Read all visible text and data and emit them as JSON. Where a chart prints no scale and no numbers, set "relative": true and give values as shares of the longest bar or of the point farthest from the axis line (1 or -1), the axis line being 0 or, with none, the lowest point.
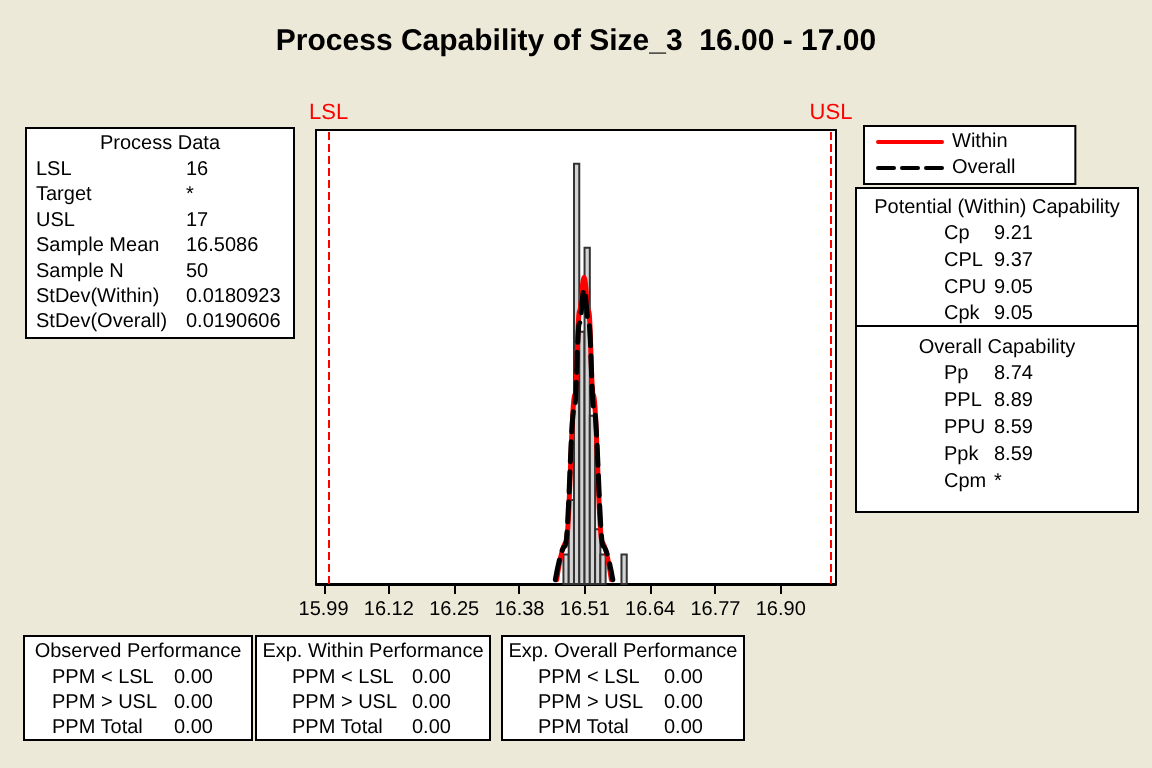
{
  "chart_data": {
    "type": "histogram",
    "title": "Process Capability of Size_3  16.00 - 17.00",
    "relative": true,
    "bins": [
      16.4675,
      16.478,
      16.4885,
      16.499,
      16.5095,
      16.52,
      16.5305,
      16.541,
      16.5515,
      16.562,
      16.5725,
      16.583,
      16.5935
    ],
    "values": [
      0.07,
      0.2,
      1,
      0.6,
      0.8,
      0.4,
      0.13,
      0.07,
      0,
      0,
      0,
      0.07
    ],
    "color": "#d4d4d4",
    "series": [
      {
        "type": "line",
        "name": "Within",
        "color": "#ff0000",
        "line_style": "solid",
        "x": [
          16.454,
          16.4724,
          16.4905,
          16.4995,
          16.5086,
          16.5177,
          16.5267,
          16.5448,
          16.5629
        ],
        "values": [
          0.01,
          0.1,
          0.45,
          0.65,
          0.73,
          0.65,
          0.45,
          0.1,
          0.01
        ]
      },
      {
        "type": "line",
        "name": "Overall",
        "color": "#000000",
        "line_style": "dashed",
        "x": [
          16.4514,
          16.4705,
          16.4895,
          16.4991,
          16.5086,
          16.5181,
          16.5277,
          16.5467,
          16.5658
        ],
        "values": [
          0.01,
          0.09,
          0.42,
          0.62,
          0.7,
          0.62,
          0.42,
          0.09,
          0.01
        ]
      }
    ],
    "marker": "none",
    "xlim": [
      15.975,
      17.01
    ],
    "xticks": [
      15.99,
      16.12,
      16.25,
      16.38,
      16.51,
      16.64,
      16.77,
      {
        "value": 16.9,
        "label": "16.90"
      }
    ],
    "tick_labels": "x",
    "ref_lines": [
      {
        "axis": "x",
        "value": 16,
        "label": "LSL",
        "color": "#ff0000",
        "line_style": "dashed"
      },
      {
        "axis": "x",
        "value": 17,
        "label": "USL",
        "color": "#ff0000",
        "line_style": "dashed"
      }
    ],
    "legend": "top right",
    "annotations": [
      "Process Data\nLSL\t16\nTarget\t*\nUSL\t17\nSample Mean\t16.5086\nSample N\t50\nStDev(Within)\t0.0180923\nStDev(Overall)\t0.0190606",
      "Potential (Within) Capability\nCp\t9.21\nCPL\t9.37\nCPU\t9.05\nCpk\t9.05",
      "Overall Capability\nPp\t8.74\nPPL\t8.89\nPPU\t8.59\nPpk\t8.59\nCpm\t*",
      "Observed Performance\nPPM < LSL\t0.00\nPPM > USL\t0.00\nPPM Total\t0.00",
      "Exp. Within Performance\nPPM < LSL\t0.00\nPPM > USL\t0.00\nPPM Total\t0.00",
      "Exp. Overall Performance\nPPM < LSL\t0.00\nPPM > USL\t0.00\nPPM Total\t0.00"
    ]
  }
}
